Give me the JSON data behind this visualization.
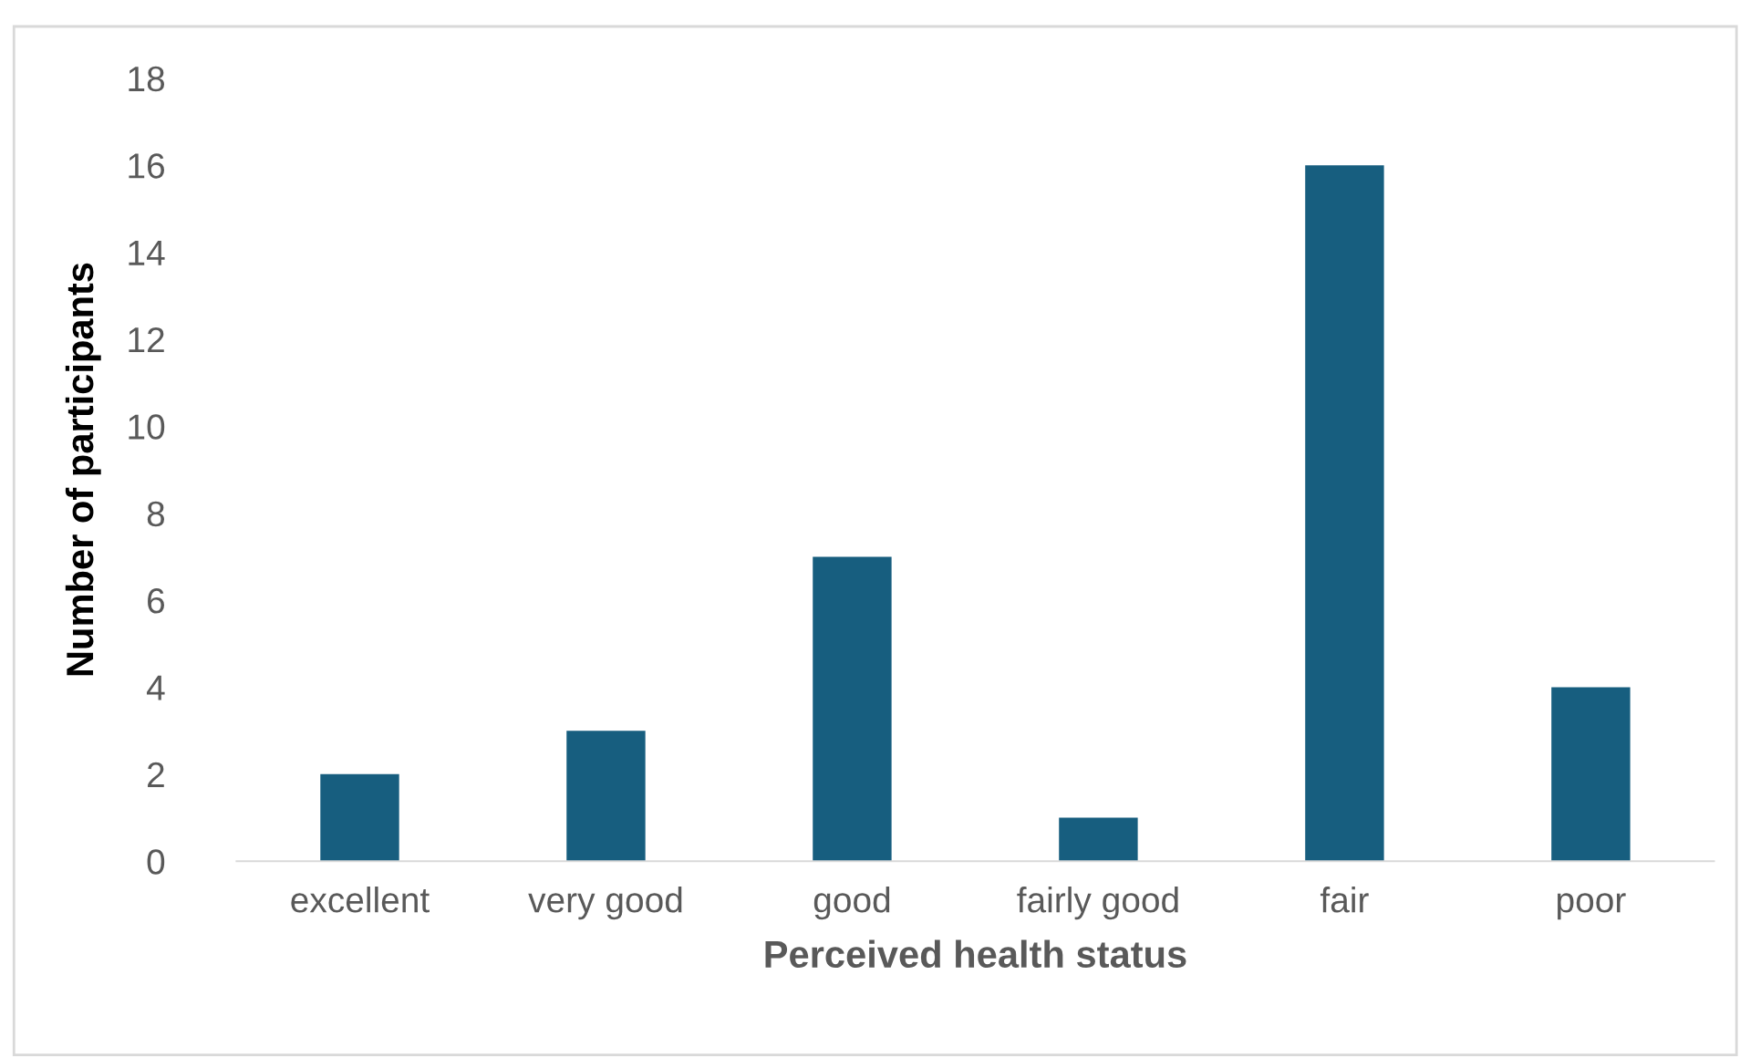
{
  "chart_data": {
    "type": "bar",
    "xlabel": "Perceived health status",
    "ylabel": "Number of participants",
    "categories": [
      "excellent",
      "very good",
      "good",
      "fairly good",
      "fair",
      "poor"
    ],
    "values": [
      2,
      3,
      7,
      1,
      16,
      4
    ],
    "color": "#175e7f",
    "ylim": [
      0,
      18
    ],
    "yticks": [
      0,
      2,
      4,
      6,
      8,
      10,
      12,
      14,
      16,
      18
    ],
    "grid": false
  }
}
